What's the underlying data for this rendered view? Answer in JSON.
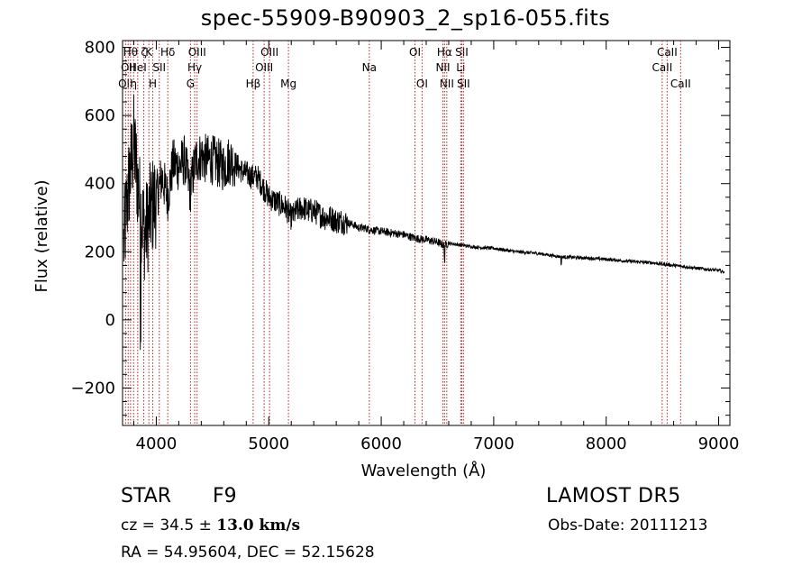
{
  "chart_data": {
    "type": "line",
    "title": "spec-55909-B90903_2_sp16-055.fits",
    "xlabel": "Wavelength (Å)",
    "ylabel": "Flux (relative)",
    "xlim": [
      3700,
      9100
    ],
    "ylim": [
      -310,
      820
    ],
    "xticks": [
      4000,
      5000,
      6000,
      7000,
      8000,
      9000
    ],
    "yticks": [
      -200,
      0,
      200,
      400,
      600,
      800
    ],
    "grid": false,
    "legend": "none",
    "line_color": "#000000",
    "marker_line_color": "#b22222",
    "series": [
      {
        "x": [
          3710,
          3750,
          3800,
          3850,
          3900,
          3950,
          4000,
          4050,
          4100,
          4150,
          4200,
          4250,
          4300,
          4350,
          4400,
          4450,
          4500,
          4550,
          4600,
          4650,
          4700,
          4750,
          4800,
          4850,
          4900,
          4950,
          5000,
          5050,
          5100,
          5150,
          5200,
          5250,
          5300,
          5350,
          5400,
          5450,
          5500,
          5550,
          5600,
          5650,
          5700,
          5750,
          5800,
          5850,
          5900,
          5950,
          6000,
          6100,
          6200,
          6300,
          6400,
          6500,
          6563,
          6600,
          6700,
          6800,
          6900,
          7000,
          7200,
          7400,
          7600,
          7800,
          8000,
          8200,
          8400,
          8600,
          8800,
          9000,
          9050
        ],
        "y": [
          220,
          380,
          520,
          350,
          250,
          320,
          360,
          420,
          360,
          460,
          450,
          470,
          380,
          470,
          480,
          470,
          470,
          460,
          450,
          470,
          460,
          440,
          430,
          420,
          420,
          390,
          360,
          350,
          340,
          330,
          300,
          320,
          330,
          320,
          320,
          310,
          300,
          300,
          290,
          290,
          285,
          280,
          270,
          270,
          265,
          262,
          260,
          255,
          250,
          240,
          235,
          228,
          218,
          225,
          220,
          215,
          212,
          210,
          200,
          195,
          185,
          182,
          178,
          172,
          168,
          160,
          152,
          145,
          140
        ]
      }
    ],
    "line_markers": [
      {
        "x": 3727,
        "label": "OII",
        "row": 2
      },
      {
        "x": 3750,
        "label": "OII",
        "row": 1
      },
      {
        "x": 3771,
        "label": "Hθ",
        "row": 0
      },
      {
        "x": 3798,
        "label": "η",
        "row": 2
      },
      {
        "x": 3835,
        "label": "HeI",
        "row": 1
      },
      {
        "x": 3889,
        "label": "ζ",
        "row": 0
      },
      {
        "x": 3934,
        "label": "K",
        "row": 0
      },
      {
        "x": 3969,
        "label": "H",
        "row": 2
      },
      {
        "x": 4026,
        "label": "SII",
        "row": 1
      },
      {
        "x": 4102,
        "label": "Hδ",
        "row": 0
      },
      {
        "x": 4304,
        "label": "G",
        "row": 2
      },
      {
        "x": 4341,
        "label": "Hγ",
        "row": 1
      },
      {
        "x": 4363,
        "label": "OIII",
        "row": 0
      },
      {
        "x": 4861,
        "label": "Hβ",
        "row": 2
      },
      {
        "x": 4959,
        "label": "OIII",
        "row": 1
      },
      {
        "x": 5007,
        "label": "OIII",
        "row": 0
      },
      {
        "x": 5175,
        "label": "Mg",
        "row": 2
      },
      {
        "x": 5894,
        "label": "Na",
        "row": 1
      },
      {
        "x": 6300,
        "label": "OI",
        "row": 0
      },
      {
        "x": 6363,
        "label": "OI",
        "row": 2
      },
      {
        "x": 6548,
        "label": "NII",
        "row": 1
      },
      {
        "x": 6563,
        "label": "Hα",
        "row": 0
      },
      {
        "x": 6583,
        "label": "NII",
        "row": 2
      },
      {
        "x": 6707,
        "label": "Li",
        "row": 1
      },
      {
        "x": 6716,
        "label": "SII",
        "row": 0
      },
      {
        "x": 6731,
        "label": "SII",
        "row": 2
      },
      {
        "x": 8498,
        "label": "CaII",
        "row": 1
      },
      {
        "x": 8542,
        "label": "CaII",
        "row": 0
      },
      {
        "x": 8662,
        "label": "CaII",
        "row": 2
      }
    ]
  },
  "info": {
    "class": "STAR",
    "subclass": "F9",
    "survey": "LAMOST DR5",
    "cz_prefix": "cz = 34.5 ± ",
    "cz_value": "13.0 km/s",
    "obs_date": "Obs-Date: 20111213",
    "radec": "RA =  54.95604, DEC =  52.15628"
  }
}
